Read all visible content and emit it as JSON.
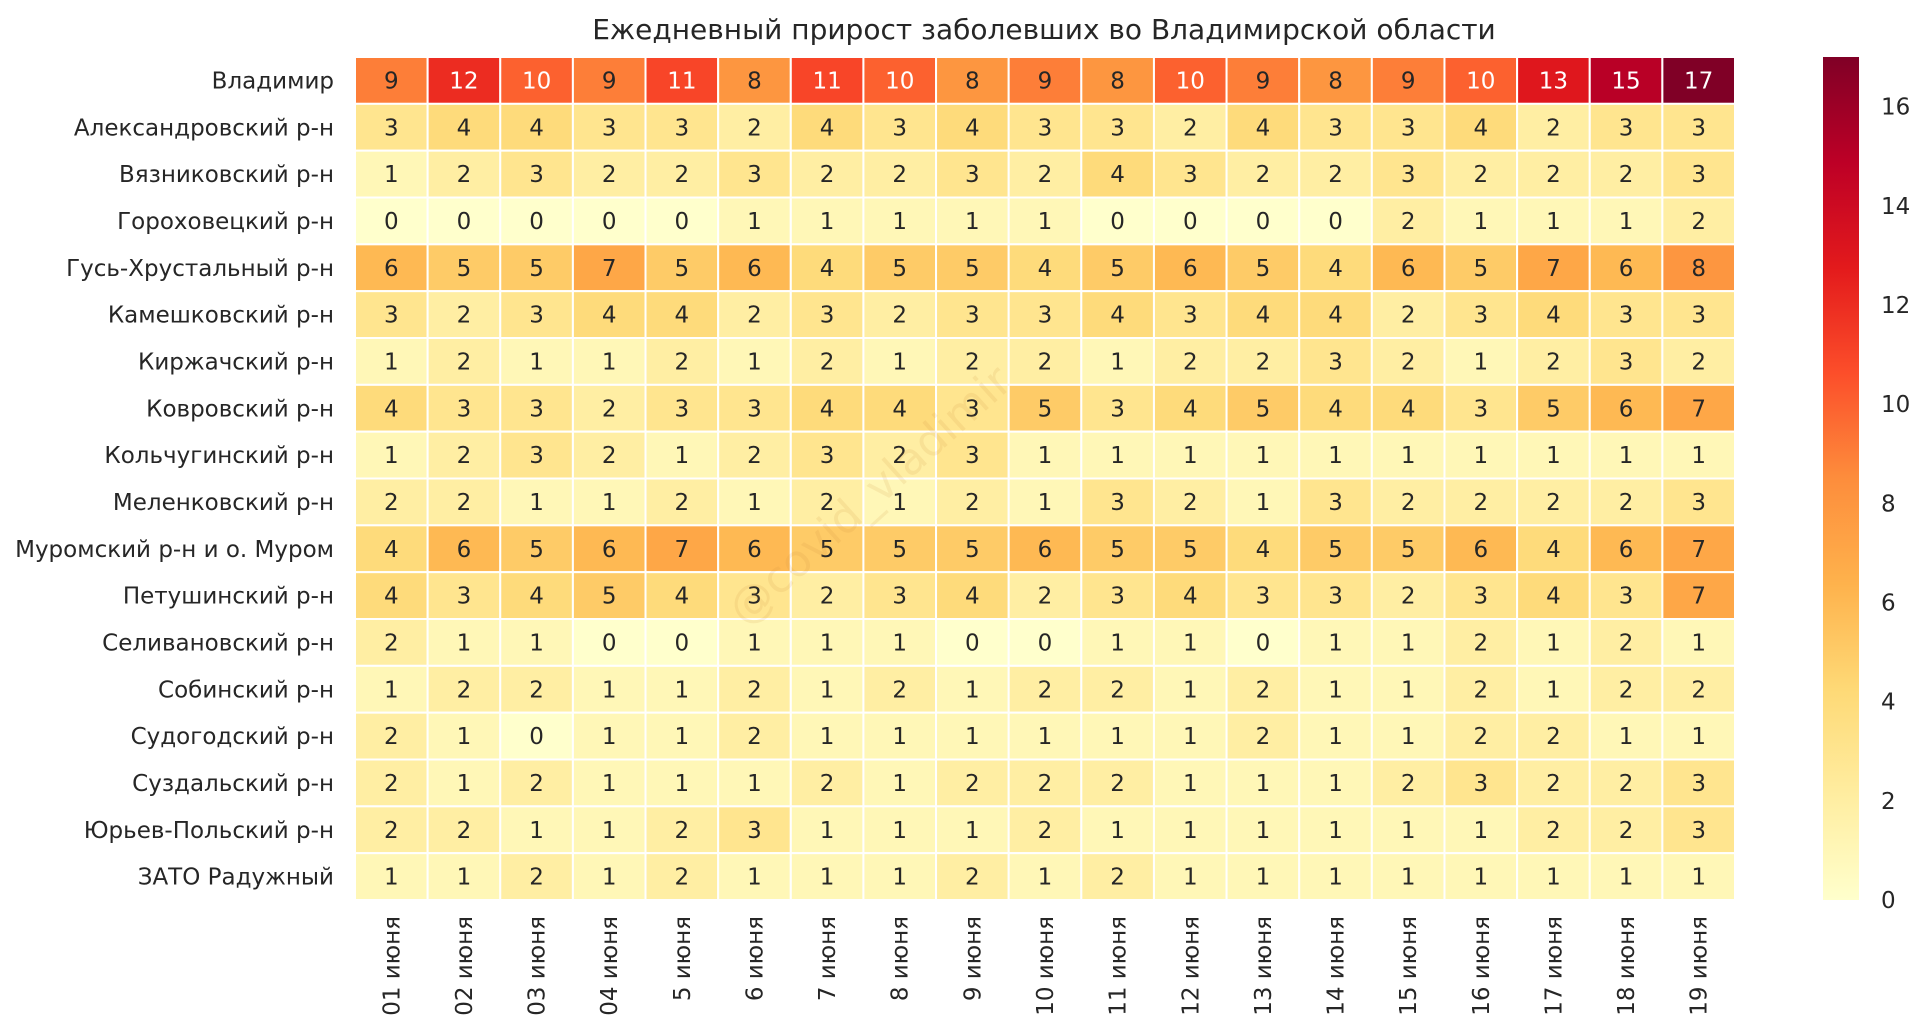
{
  "chart_data": {
    "type": "heatmap",
    "title": "Ежедневный прирост заболевших во Владимирской области",
    "xlabel": "",
    "ylabel": "",
    "x": [
      "01 июня",
      "02 июня",
      "03 июня",
      "04 июня",
      "5 июня",
      "6 июня",
      "7 июня",
      "8 июня",
      "9 июня",
      "10 июня",
      "11 июня",
      "12 июня",
      "13 июня",
      "14 июня",
      "15 июня",
      "16 июня",
      "17 июня",
      "18 июня",
      "19 июня"
    ],
    "y": [
      "Владимир",
      "Александровский р-н",
      "Вязниковский р-н",
      "Гороховецкий р-н",
      "Гусь-Хрустальный р-н",
      "Камешковский р-н",
      "Киржачский р-н",
      "Ковровский р-н",
      "Кольчугинский р-н",
      "Меленковский р-н",
      "Муромский р-н и о. Муром",
      "Петушинский р-н",
      "Селивановский р-н",
      "Собинский р-н",
      "Судогодский р-н",
      "Суздальский р-н",
      "Юрьев-Польский р-н",
      "ЗАТО Радужный"
    ],
    "values": [
      [
        9,
        12,
        10,
        9,
        11,
        8,
        11,
        10,
        8,
        9,
        8,
        10,
        9,
        8,
        9,
        10,
        13,
        15,
        17
      ],
      [
        3,
        4,
        4,
        3,
        3,
        2,
        4,
        3,
        4,
        3,
        3,
        2,
        4,
        3,
        3,
        4,
        2,
        3,
        3
      ],
      [
        1,
        2,
        3,
        2,
        2,
        3,
        2,
        2,
        3,
        2,
        4,
        3,
        2,
        2,
        3,
        2,
        2,
        2,
        3
      ],
      [
        0,
        0,
        0,
        0,
        0,
        1,
        1,
        1,
        1,
        1,
        0,
        0,
        0,
        0,
        2,
        1,
        1,
        1,
        2
      ],
      [
        6,
        5,
        5,
        7,
        5,
        6,
        4,
        5,
        5,
        4,
        5,
        6,
        5,
        4,
        6,
        5,
        7,
        6,
        8
      ],
      [
        3,
        2,
        3,
        4,
        4,
        2,
        3,
        2,
        3,
        3,
        4,
        3,
        4,
        4,
        2,
        3,
        4,
        3,
        3
      ],
      [
        1,
        2,
        1,
        1,
        2,
        1,
        2,
        1,
        2,
        2,
        1,
        2,
        2,
        3,
        2,
        1,
        2,
        3,
        2
      ],
      [
        4,
        3,
        3,
        2,
        3,
        3,
        4,
        4,
        3,
        5,
        3,
        4,
        5,
        4,
        4,
        3,
        5,
        6,
        7
      ],
      [
        1,
        2,
        3,
        2,
        1,
        2,
        3,
        2,
        3,
        1,
        1,
        1,
        1,
        1,
        1,
        1,
        1,
        1,
        1
      ],
      [
        2,
        2,
        1,
        1,
        2,
        1,
        2,
        1,
        2,
        1,
        3,
        2,
        1,
        3,
        2,
        2,
        2,
        2,
        3
      ],
      [
        4,
        6,
        5,
        6,
        7,
        6,
        5,
        5,
        5,
        6,
        5,
        5,
        4,
        5,
        5,
        6,
        4,
        6,
        7
      ],
      [
        4,
        3,
        4,
        5,
        4,
        3,
        2,
        3,
        4,
        2,
        3,
        4,
        3,
        3,
        2,
        3,
        4,
        3,
        7
      ],
      [
        2,
        1,
        1,
        0,
        0,
        1,
        1,
        1,
        0,
        0,
        1,
        1,
        0,
        1,
        1,
        2,
        1,
        2,
        1
      ],
      [
        1,
        2,
        2,
        1,
        1,
        2,
        1,
        2,
        1,
        2,
        2,
        1,
        2,
        1,
        1,
        2,
        1,
        2,
        2
      ],
      [
        2,
        1,
        0,
        1,
        1,
        2,
        1,
        1,
        1,
        1,
        1,
        1,
        2,
        1,
        1,
        2,
        2,
        1,
        1
      ],
      [
        2,
        1,
        2,
        1,
        1,
        1,
        2,
        1,
        2,
        2,
        2,
        1,
        1,
        1,
        2,
        3,
        2,
        2,
        3
      ],
      [
        2,
        2,
        1,
        1,
        2,
        3,
        1,
        1,
        1,
        2,
        1,
        1,
        1,
        1,
        1,
        1,
        2,
        2,
        3
      ],
      [
        1,
        1,
        2,
        1,
        2,
        1,
        1,
        1,
        2,
        1,
        2,
        1,
        1,
        1,
        1,
        1,
        1,
        1,
        1
      ]
    ],
    "colorbar": {
      "min": 0,
      "max": 17,
      "ticks": [
        0,
        2,
        4,
        6,
        8,
        10,
        12,
        14,
        16
      ],
      "colormap": "YlOrRd",
      "stops": [
        "#ffffcc",
        "#ffeda0",
        "#fed976",
        "#feb24c",
        "#fd8d3c",
        "#fc4e2a",
        "#e31a1c",
        "#bd0026",
        "#800026"
      ]
    },
    "annotations": "values printed in each cell",
    "grid": false,
    "watermark": "@covid_vladimir"
  }
}
